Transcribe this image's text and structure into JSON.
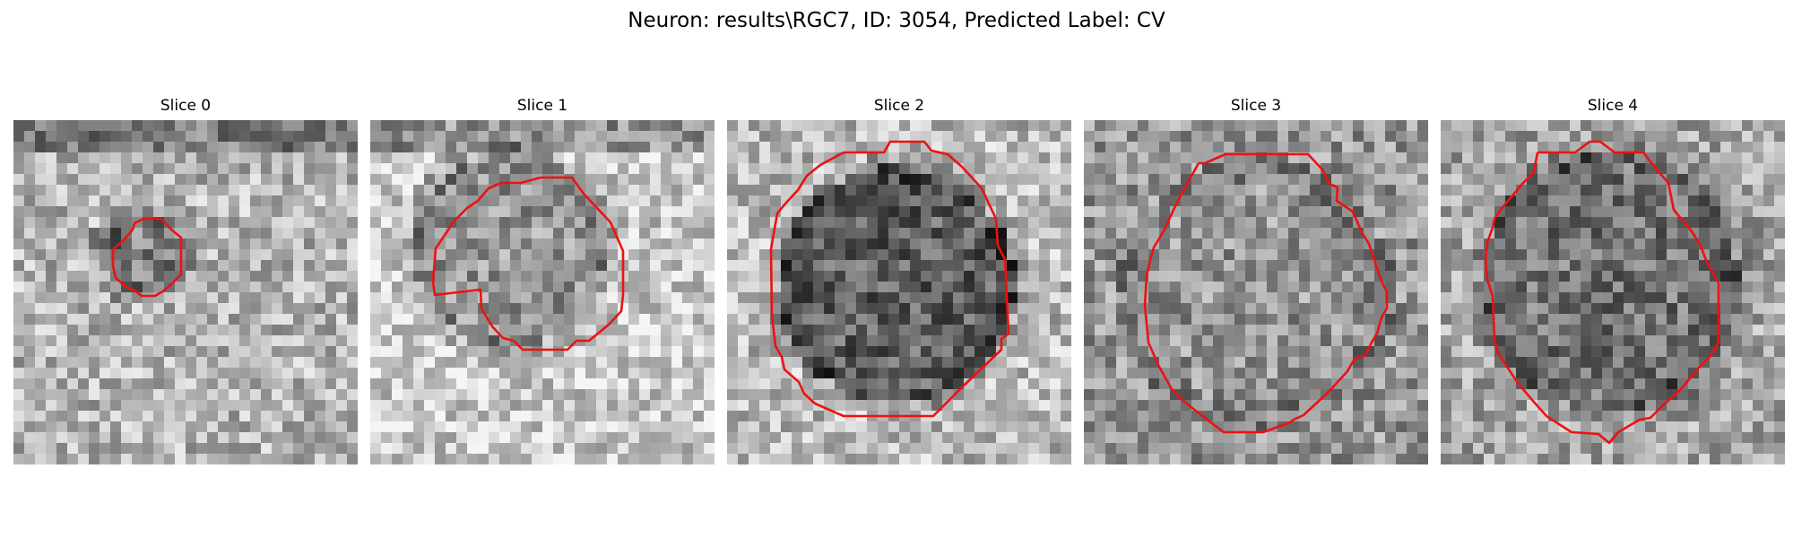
{
  "figure": {
    "title": "Neuron: results\\RGC7, ID: 3054, Predicted Label: CV"
  },
  "colors": {
    "contour": "#ee1111",
    "background": "#ffffff",
    "text": "#000000"
  },
  "panels": [
    {
      "title": "Slice 0"
    },
    {
      "title": "Slice 1"
    },
    {
      "title": "Slice 2"
    },
    {
      "title": "Slice 3"
    },
    {
      "title": "Slice 4"
    }
  ]
}
